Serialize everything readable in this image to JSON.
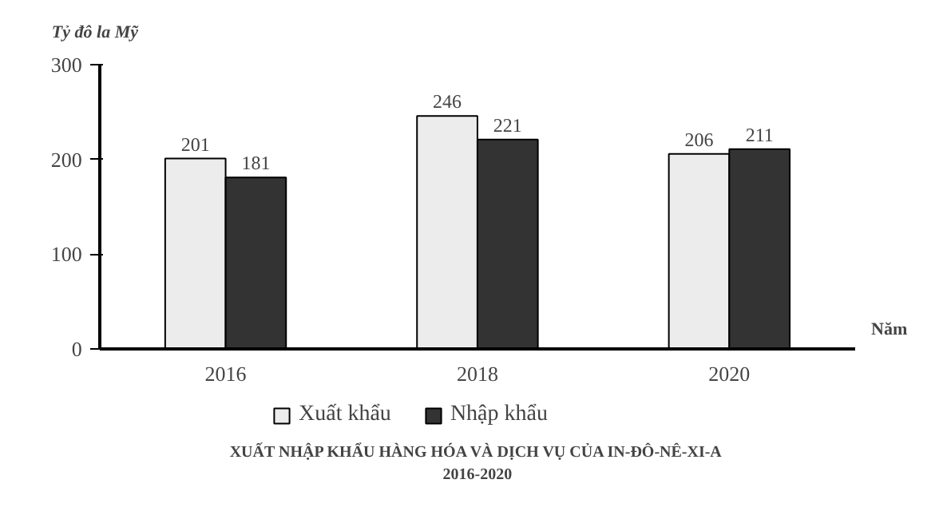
{
  "chart_data": {
    "type": "bar",
    "title": "XUẤT NHẬP KHẨU HÀNG HÓA VÀ DỊCH VỤ CỦA IN-ĐÔ-NÊ-XI-A",
    "subtitle": "2016-2020",
    "ylabel": "Tỷ đô la Mỹ",
    "xlabel": "Năm",
    "categories": [
      "2016",
      "2018",
      "2020"
    ],
    "series": [
      {
        "name": "Xuất khẩu",
        "color": "#ececec",
        "values": [
          201,
          246,
          206
        ]
      },
      {
        "name": "Nhập khẩu",
        "color": "#333333",
        "values": [
          181,
          221,
          211
        ]
      }
    ],
    "ylim": [
      0,
      300
    ],
    "yticks": [
      0,
      100,
      200,
      300
    ],
    "grid": false,
    "legend": "bottom",
    "data_labels": true
  }
}
